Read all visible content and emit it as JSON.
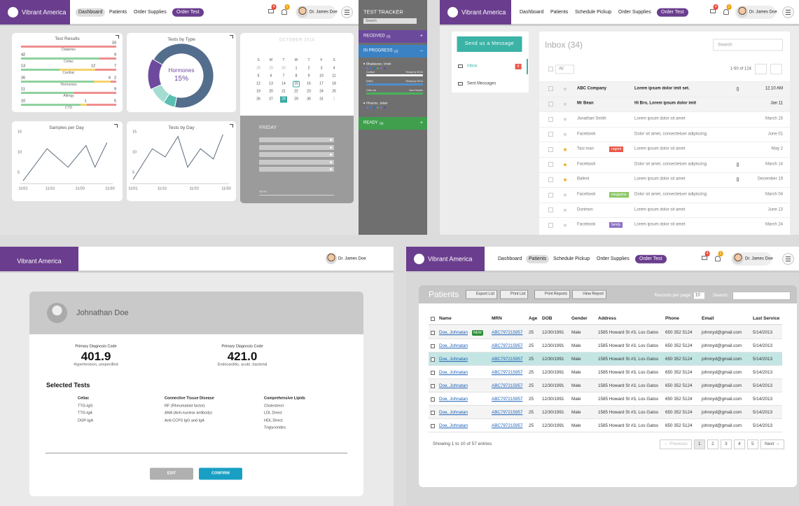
{
  "dashboard": {
    "header": {
      "brand": "Vibrant America",
      "nav": [
        "Dashboard",
        "Patients",
        "Order Supplies"
      ],
      "order_button": "Order Test",
      "badges": [
        4,
        1
      ],
      "user": "Dr. James Doe"
    },
    "test_results": {
      "title": "Test Results",
      "colors": [
        "#8fd19e",
        "#f3d36b",
        "#ef8f8f"
      ],
      "rows": [
        {
          "label": "Diabetes",
          "values": [
            33
          ]
        },
        {
          "label": "Celiac",
          "values": [
            42,
            9
          ]
        },
        {
          "label": "Cardiac",
          "values": [
            13,
            12,
            7
          ]
        },
        {
          "label": "Hormones",
          "values": [
            26,
            6,
            2
          ]
        },
        {
          "label": "Allergy",
          "values": [
            11,
            9
          ]
        },
        {
          "label": "CTD",
          "values": [
            10,
            1,
            5
          ]
        }
      ]
    },
    "tests_by_type": {
      "type": "donut",
      "title": "Tests by Type",
      "categories": [
        null,
        null,
        null,
        "Hormones"
      ],
      "values": [
        70,
        6,
        9,
        15
      ],
      "value_labels": [
        null,
        null,
        null,
        "15%"
      ],
      "colors": [
        "#536e8c",
        "#5cbfb3",
        "#a4dcd2",
        "#6e4a9e"
      ]
    },
    "samples_per_day": {
      "type": "line",
      "title": "Samples per Day",
      "x": [
        1,
        9,
        16,
        22,
        25,
        29
      ],
      "values": [
        3.2,
        11,
        6.5,
        11.8,
        6.5,
        12.5
      ],
      "color": "#5b6b7d",
      "xlim": [
        1,
        30
      ],
      "ylim": [
        2.5,
        16
      ],
      "yticks": [
        5,
        10,
        15
      ],
      "xticks": [
        {
          "value": 1,
          "label": "11/01"
        },
        {
          "value": 10,
          "label": "11/10"
        },
        {
          "value": 20,
          "label": "11/20"
        },
        {
          "value": 30,
          "label": "11/30"
        }
      ]
    },
    "tests_by_day": {
      "type": "line",
      "title": "Tests by Day",
      "x": [
        1,
        7,
        11,
        15,
        18,
        22,
        26,
        29
      ],
      "values": [
        3.5,
        11,
        9,
        14,
        6.5,
        11,
        8.5,
        14.5
      ],
      "color": "#5b6b7d",
      "xlim": [
        1,
        30
      ],
      "ylim": [
        2.5,
        16
      ],
      "yticks": [
        5,
        10,
        15
      ],
      "xticks": [
        {
          "value": 1,
          "label": "11/01"
        },
        {
          "value": 10,
          "label": "11/10"
        },
        {
          "value": 20,
          "label": "11/20"
        },
        {
          "value": 30,
          "label": "11/30"
        }
      ]
    },
    "calendar": {
      "month": "OCTOBER 2014",
      "weekdays": [
        "S",
        "M",
        "T",
        "W",
        "T",
        "F",
        "S"
      ],
      "weeks": [
        [
          28,
          29,
          30,
          1,
          2,
          3,
          4
        ],
        [
          5,
          6,
          7,
          8,
          9,
          10,
          11
        ],
        [
          12,
          13,
          14,
          15,
          16,
          17,
          18
        ],
        [
          19,
          20,
          21,
          22,
          23,
          24,
          25
        ],
        [
          26,
          27,
          28,
          29,
          30,
          31,
          1
        ]
      ],
      "marked_day": 15,
      "today_day": 28,
      "day_label": "FRIDAY",
      "note_label": "NOTE"
    },
    "tracker": {
      "title": "TEST TRACKER",
      "search": "Search",
      "sections": [
        {
          "name": "RECEIVED",
          "count": "(3)",
          "color": "#6b4a9c",
          "sign": "+"
        },
        {
          "name": "IN PROGRESS",
          "count": "(2)",
          "color": "#3b82c4",
          "sign": "–"
        },
        {
          "name": "READY",
          "count": "(9)",
          "color": "#3f9f4d",
          "sign": "+"
        }
      ],
      "patients": [
        {
          "name": "Bhadauran, Vivek",
          "tests": [
            {
              "name": "Cortisol",
              "status": "Ready by 03/14",
              "color": "#f2f2f2"
            },
            {
              "name": "DHEA",
              "status": "Ready by 03/14",
              "color": "#4d8fd0"
            },
            {
              "name": "Other pls",
              "status": "View Results",
              "color": "#49b35a"
            }
          ]
        },
        {
          "name": "Phoenix, Julian",
          "tests": []
        }
      ]
    }
  },
  "inbox": {
    "header": {
      "brand": "Vibrant America",
      "nav": [
        "Dashboard",
        "Patients",
        "Schedule Pickup",
        "Order Supplies"
      ],
      "order_button": "Order Test",
      "badges": [
        4,
        1
      ],
      "user": "Dr. James Doe"
    },
    "compose": "Send us a Message",
    "folders": [
      {
        "name": "Inbox",
        "count": 9
      },
      {
        "name": "Sent Messages"
      }
    ],
    "title": "Inbox (34)",
    "search": "Search",
    "filter": "All",
    "range": "1-50 of 124",
    "messages": [
      {
        "from": "ABC Company",
        "subject": "Lorem ipsum dolor imit set.",
        "date": "12.10 AM",
        "bold": true,
        "attachment": true
      },
      {
        "from": "Mr Bean",
        "subject": "Hi Bro, Lorem ipsum dolor imit",
        "date": "Jan 11",
        "bold": true
      },
      {
        "from": "Jonathan Smith",
        "subject": "Lorem ipsum dolor sit amet",
        "date": "March 15"
      },
      {
        "from": "Facebook",
        "subject": "Dolor sit amet, consectetuer adipiscing",
        "date": "June 01"
      },
      {
        "from": "Tasi man",
        "tag": "urgent",
        "tag_color": "#e8594a",
        "subject": "Lorem ipsum dolor sit amet",
        "date": "May 2",
        "starred": true
      },
      {
        "from": "Facebook",
        "subject": "Dolor sit amet, consectetuer adipiscing",
        "date": "March 14",
        "starred": true,
        "attachment": true
      },
      {
        "from": "Bafent",
        "subject": "Lorem ipsum dolor sit amet",
        "date": "December 19",
        "starred": true,
        "attachment": true
      },
      {
        "from": "Facebook",
        "tag": "megazine",
        "tag_color": "#8cc867",
        "subject": "Dolor sit amet, consectetuer adipiscing",
        "date": "March 04"
      },
      {
        "from": "Dorimon",
        "subject": "Lorem ipsum dolor sit amet",
        "date": "June 13"
      },
      {
        "from": "Facebook",
        "tag": "family",
        "tag_color": "#8c6fc4",
        "subject": "Lorem ipsum dolor sit amet",
        "date": "March 24"
      }
    ]
  },
  "patient_detail": {
    "header": {
      "brand": "Vibrant America",
      "user": "Dr. James Doe"
    },
    "name": "Johnathan Doe",
    "diagnoses": [
      {
        "label": "Primary Diagnosis Code",
        "code": "401.9",
        "description": "Hypertension, unspecified"
      },
      {
        "label": "Primary Diagnosis Code",
        "code": "421.0",
        "description": "Endocarditis, acute, bacterial"
      }
    ],
    "selected_tests_title": "Selected Tests",
    "test_groups": [
      {
        "name": "Celiac",
        "tests": [
          "TTG-IgG",
          "TTG-IgA",
          "DGP-IgA"
        ]
      },
      {
        "name": "Connective Tissue Disease",
        "tests": [
          "RF (Rheumatoid factor)",
          "ANA (Anti-nuclear antibody)",
          "Anti-CCP3 IgG and IgA"
        ]
      },
      {
        "name": "Comprehensive Lipids",
        "tests": [
          "Cholesterol",
          "LDL Direct",
          "HDL Direct",
          "Triglycerides"
        ]
      }
    ],
    "buttons": [
      "EDIT",
      "CONFIRM"
    ]
  },
  "patients": {
    "header": {
      "brand": "Vibrant America",
      "nav": [
        "Dashboard",
        "Patients",
        "Schedule Pickup",
        "Order Supplies"
      ],
      "order_button": "Order Test",
      "badges": [
        4,
        1
      ],
      "user": "Dr. James Doe"
    },
    "title": "Patients",
    "actions": [
      "Export List",
      "Print List",
      "Print Reports",
      "View Report"
    ],
    "records_label": "Records per page:",
    "records_value": "10",
    "search_label": "Search:",
    "columns": [
      "Name",
      "MRN",
      "Age",
      "DOB",
      "Gender",
      "Address",
      "Phone",
      "Email",
      "Last Service"
    ],
    "new_badge": "NEW",
    "highlight_row": 2,
    "rows": [
      [
        "Doe, Johnatan",
        "ABC797215957",
        "25",
        "12/30/1991",
        "Male",
        "1585 Howard St #3, Los Gatos",
        "650 352 5124",
        "johnnyd@gmail.com",
        "5/14/2013"
      ],
      [
        "Doe, Johnatan",
        "ABC797215957",
        "25",
        "12/30/1991",
        "Male",
        "1585 Howard St #3, Los Gatos",
        "650 352 5124",
        "johnnyd@gmail.com",
        "5/14/2013"
      ],
      [
        "Doe, Johnatan",
        "ABC797215957",
        "25",
        "12/30/1991",
        "Male",
        "1585 Howard St #3, Los Gatos",
        "650 352 5124",
        "johnnyd@gmail.com",
        "5/14/2013"
      ],
      [
        "Doe, Johnatan",
        "ABC797215957",
        "25",
        "12/30/1991",
        "Male",
        "1585 Howard St #3, Los Gatos",
        "650 352 5124",
        "johnnyd@gmail.com",
        "5/14/2013"
      ],
      [
        "Doe, Johnatan",
        "ABC797215957",
        "25",
        "12/30/1991",
        "Male",
        "1585 Howard St #3, Los Gatos",
        "650 352 5124",
        "johnnyd@gmail.com",
        "5/14/2013"
      ],
      [
        "Doe, Johnatan",
        "ABC797215957",
        "25",
        "12/30/1991",
        "Male",
        "1585 Howard St #3, Los Gatos",
        "650 352 5124",
        "johnnyd@gmail.com",
        "5/14/2013"
      ],
      [
        "Doe, Johnatan",
        "ABC797215957",
        "25",
        "12/30/1991",
        "Male",
        "1585 Howard St #3, Los Gatos",
        "650 352 5124",
        "johnnyd@gmail.com",
        "5/14/2013"
      ],
      [
        "Doe, Johnatan",
        "ABC797215957",
        "25",
        "12/30/1991",
        "Male",
        "1585 Howard St #3, Los Gatos",
        "650 352 5124",
        "johnnyd@gmail.com",
        "5/14/2013"
      ]
    ],
    "footer": "Showing 1 to 10 of 57 entries",
    "pagination": [
      "← Previous",
      "1",
      "2",
      "3",
      "4",
      "5",
      "Next →"
    ]
  }
}
